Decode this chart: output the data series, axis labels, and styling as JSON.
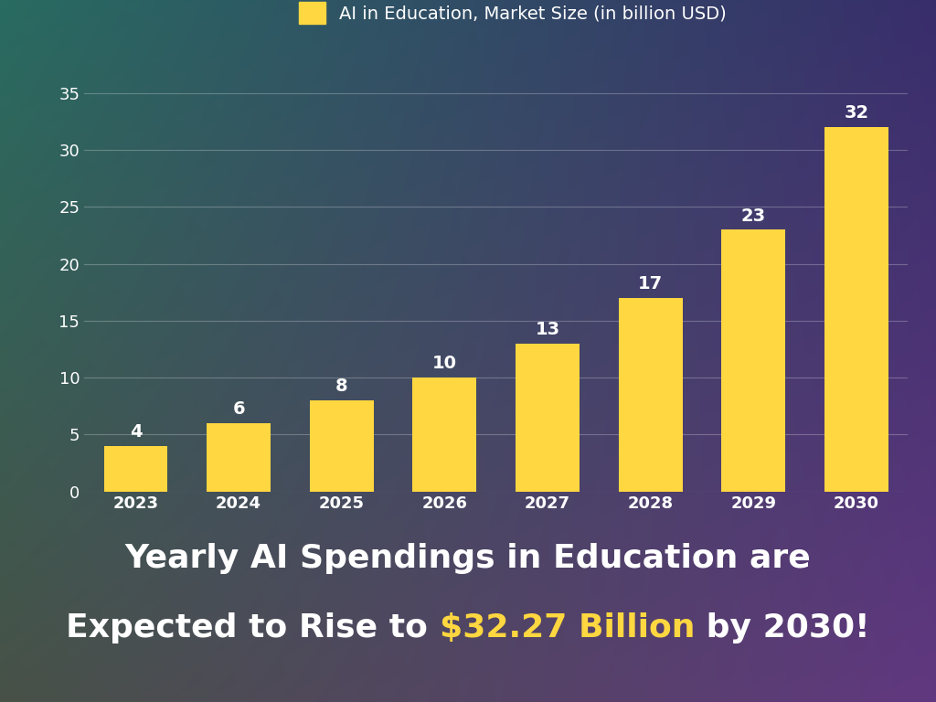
{
  "years": [
    "2023",
    "2024",
    "2025",
    "2026",
    "2027",
    "2028",
    "2029",
    "2030"
  ],
  "values": [
    4,
    6,
    8,
    10,
    13,
    17,
    23,
    32
  ],
  "bar_color": "#FFD740",
  "ylim": [
    0,
    37
  ],
  "yticks": [
    0,
    5,
    10,
    15,
    20,
    25,
    30,
    35
  ],
  "legend_label": "AI in Education, Market Size (in billion USD)",
  "highlight_color": "#FFD740",
  "text_color": "#FFFFFF",
  "annotation_fontsize": 14,
  "tick_fontsize": 13,
  "legend_fontsize": 14,
  "subtitle_fontsize": 26,
  "grid_color": "#FFFFFF",
  "grid_alpha": 0.25,
  "tl_color": [
    0.16,
    0.42,
    0.38
  ],
  "tr_color": [
    0.22,
    0.18,
    0.42
  ],
  "bl_color": [
    0.28,
    0.32,
    0.28
  ],
  "br_color": [
    0.38,
    0.22,
    0.5
  ]
}
